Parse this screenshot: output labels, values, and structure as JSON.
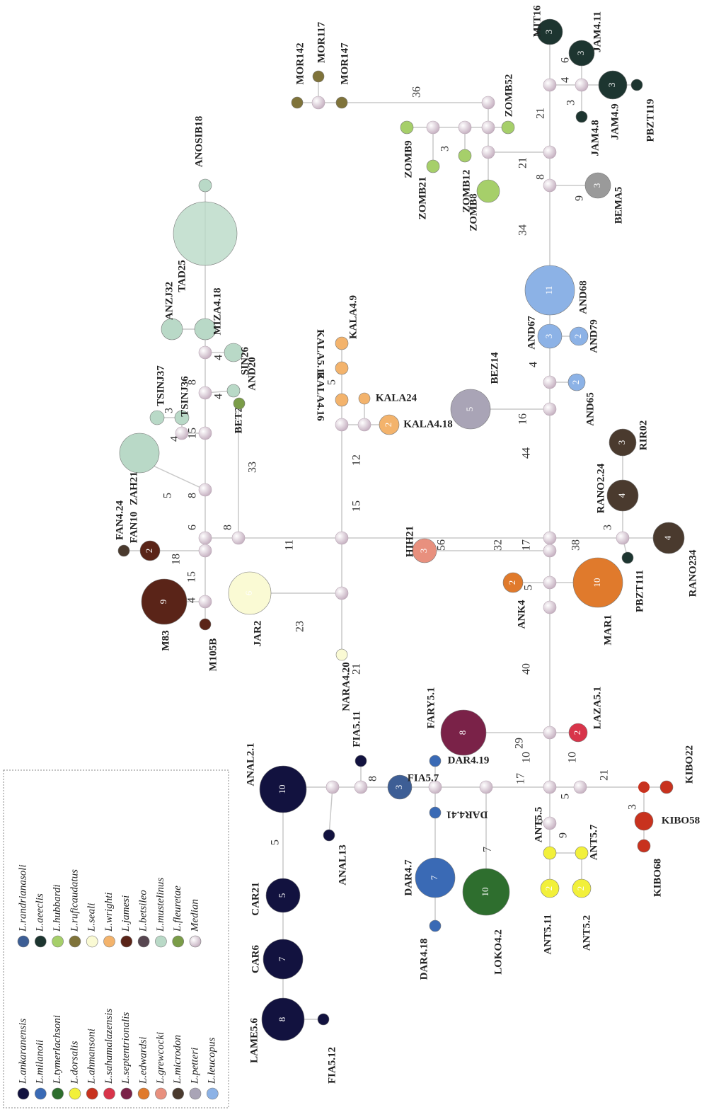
{
  "legend": {
    "entries": [
      {
        "label": "L.ankaranensis",
        "color": "#12123f"
      },
      {
        "label": "L.milanoii",
        "color": "#3a6ab5"
      },
      {
        "label": "L.tymerlachsoni",
        "color": "#2e6e2e"
      },
      {
        "label": "L.dorsalis",
        "color": "#f2f03a"
      },
      {
        "label": "L.ahmansoni",
        "color": "#c8321e"
      },
      {
        "label": "L.sahamalazensis",
        "color": "#d8344a"
      },
      {
        "label": "L.septentrionalis",
        "color": "#7a2248"
      },
      {
        "label": "L.edwardsi",
        "color": "#e07a2c"
      },
      {
        "label": "L.grewcocki",
        "color": "#e8907e"
      },
      {
        "label": "L.microdon",
        "color": "#4a3a2e"
      },
      {
        "label": "L.petteri",
        "color": "#a9a4b6"
      },
      {
        "label": "L.leucopus",
        "color": "#8cb2e6"
      },
      {
        "label": "L.randrianasoli",
        "color": "#3d5e95"
      },
      {
        "label": "L.aeeclis",
        "color": "#1d3530"
      },
      {
        "label": "L.hubbardi",
        "color": "#a6cf6a"
      },
      {
        "label": "L.ruficaudatus",
        "color": "#7f733a"
      },
      {
        "label": "L.seali",
        "color": "#fafad4"
      },
      {
        "label": "L.wrighti",
        "color": "#f3b36c"
      },
      {
        "label": "L.jamesi",
        "color": "#5a2418"
      },
      {
        "label": "L.betsileo",
        "color": "#574650"
      },
      {
        "label": "L.mustelinus",
        "color": "#b9d9c7"
      },
      {
        "label": "L.fleuretae",
        "color": "#7a9c48"
      },
      {
        "label": "Median",
        "color": "#e6d9e2"
      }
    ]
  },
  "nodes": [
    {
      "label": "LAME5.6",
      "color": "#12123f",
      "count": 8
    },
    {
      "label": "FIA5.12",
      "color": "#12123f"
    },
    {
      "label": "CAR6",
      "color": "#12123f",
      "count": 7
    },
    {
      "label": "CAR21",
      "color": "#12123f",
      "count": 5
    },
    {
      "label": "ANAL2.1",
      "color": "#12123f",
      "count": 10
    },
    {
      "label": "ANAL13",
      "color": "#12123f"
    },
    {
      "label": "FIA5.11",
      "color": "#12123f"
    },
    {
      "label": "FIA5.7",
      "color": "#3d5e95",
      "count": 3
    },
    {
      "label": "DAR4.19",
      "color": "#3a6ab5"
    },
    {
      "label": "DAR4.41",
      "color": "#3a6ab5"
    },
    {
      "label": "DAR4.7",
      "color": "#3a6ab5",
      "count": 7
    },
    {
      "label": "DAR4.18",
      "color": "#3a6ab5"
    },
    {
      "label": "LOKO4.2",
      "color": "#2e6e2e",
      "count": 10
    },
    {
      "label": "ANT5.5",
      "color": "#f2f03a"
    },
    {
      "label": "ANT5.7",
      "color": "#f2f03a"
    },
    {
      "label": "ANT5.11",
      "color": "#f2f03a",
      "count": 2
    },
    {
      "label": "ANT5.2",
      "color": "#f2f03a",
      "count": 2
    },
    {
      "label": "KIBO22",
      "color": "#c8321e"
    },
    {
      "label": "KIBO58",
      "color": "#c8321e"
    },
    {
      "label": "KIBO68",
      "color": "#c8321e"
    },
    {
      "label": "LAZA5.1",
      "color": "#d8344a",
      "count": 2
    },
    {
      "label": "FARY5.1",
      "color": "#7a2248",
      "count": 8
    },
    {
      "label": "HIH21",
      "color": "#e8907e",
      "count": 3
    },
    {
      "label": "ANK4",
      "color": "#e07a2c",
      "count": 2
    },
    {
      "label": "MAR1",
      "color": "#e07a2c",
      "count": 10
    },
    {
      "label": "PBZT111",
      "color": "#1d3530"
    },
    {
      "label": "RANO234",
      "color": "#4a3a2e",
      "count": 4
    },
    {
      "label": "RANO2.24",
      "color": "#4a3a2e",
      "count": 4
    },
    {
      "label": "RIR02",
      "color": "#4a3a2e",
      "count": 3
    },
    {
      "label": "BEZ14",
      "color": "#a9a4b6",
      "count": 5
    },
    {
      "label": "AND65",
      "color": "#8cb2e6",
      "count": 2
    },
    {
      "label": "AND67",
      "color": "#8cb2e6",
      "count": 3
    },
    {
      "label": "AND79",
      "color": "#8cb2e6",
      "count": 2
    },
    {
      "label": "AND68",
      "color": "#8cb2e6",
      "count": 11
    },
    {
      "label": "BEMA5",
      "color": "#9a9a9a",
      "count": 3
    },
    {
      "label": "ZOMB8",
      "color": "#a6cf6a"
    },
    {
      "label": "ZOMB12",
      "color": "#a6cf6a"
    },
    {
      "label": "ZOMB21",
      "color": "#a6cf6a"
    },
    {
      "label": "ZOMB9",
      "color": "#a6cf6a"
    },
    {
      "label": "ZOMB52",
      "color": "#a6cf6a"
    },
    {
      "label": "JAM4.8",
      "color": "#1d3530"
    },
    {
      "label": "JAM4.9",
      "color": "#1d3530",
      "count": 3
    },
    {
      "label": "PBZT119",
      "color": "#1d3530"
    },
    {
      "label": "JAM4.11",
      "color": "#1d3530",
      "count": 3
    },
    {
      "label": "MIT16",
      "color": "#1d3530",
      "count": 3
    },
    {
      "label": "MOR142",
      "color": "#7f733a"
    },
    {
      "label": "MOR117",
      "color": "#7f733a"
    },
    {
      "label": "MOR147",
      "color": "#7f733a"
    },
    {
      "label": "ANOSIB18",
      "color": "#b9d9c7"
    },
    {
      "label": "TAD25",
      "color": "#b9d9c7"
    },
    {
      "label": "MIZA4.18",
      "color": "#b9d9c7"
    },
    {
      "label": "ANZJ32",
      "color": "#b9d9c7"
    },
    {
      "label": "SIN26",
      "color": "#b9d9c7"
    },
    {
      "label": "TSINJ36",
      "color": "#b9d9c7"
    },
    {
      "label": "TSINJ37",
      "color": "#b9d9c7"
    },
    {
      "label": "BET21",
      "color": "#b9d9c7"
    },
    {
      "label": "AND20",
      "color": "#7a9c48"
    },
    {
      "label": "ZAH21",
      "color": "#b9d9c7"
    },
    {
      "label": "FAN10",
      "color": "#5a2418",
      "count": 2
    },
    {
      "label": "FAN4.24",
      "color": "#4a3a2e"
    },
    {
      "label": "M83",
      "color": "#5a2418",
      "count": 9
    },
    {
      "label": "M105B",
      "color": "#5a2418"
    },
    {
      "label": "JAR2",
      "color": "#fafad4",
      "count": 6
    },
    {
      "label": "NARA4.20",
      "color": "#fafad4"
    },
    {
      "label": "KALA4.18",
      "color": "#f3b36c",
      "count": 2
    },
    {
      "label": "KALA24",
      "color": "#f3b36c"
    },
    {
      "label": "KALA4.16",
      "color": "#f3b36c"
    },
    {
      "label": "KALA5.12",
      "color": "#f3b36c"
    },
    {
      "label": "KALA4.9",
      "color": "#f3b36c"
    }
  ],
  "mutations": [
    5,
    8,
    7,
    17,
    5,
    9,
    5,
    10,
    10,
    21,
    3,
    29,
    40,
    5,
    32,
    17,
    56,
    38,
    3,
    44,
    16,
    4,
    34,
    9,
    8,
    21,
    21,
    4,
    3,
    6,
    3,
    36,
    11,
    15,
    12,
    5,
    23,
    21,
    33,
    8,
    6,
    18,
    15,
    4,
    8,
    5,
    15,
    4,
    3,
    8,
    4,
    4
  ]
}
